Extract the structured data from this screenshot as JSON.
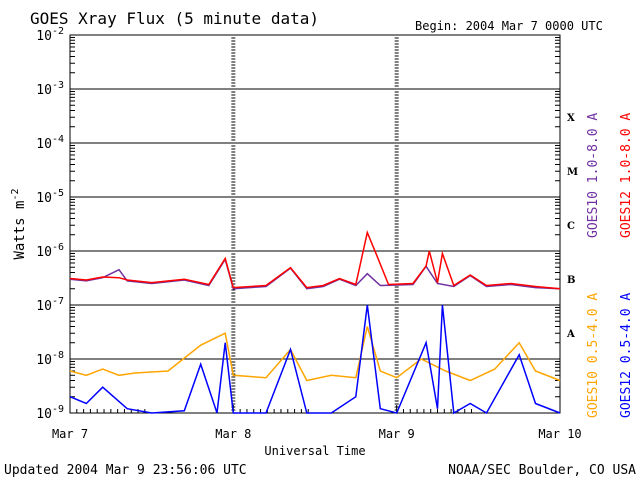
{
  "chart_data": {
    "type": "line",
    "title": "GOES Xray Flux (5 minute data)",
    "begin_label": "Begin:  2004 Mar 7 0000 UTC",
    "ylabel_main": "Watts m",
    "ylabel_exp": "-2",
    "xlabel": "Universal Time",
    "footer_left": "Updated 2004 Mar  9 23:56:06 UTC",
    "footer_right": "NOAA/SEC Boulder, CO USA",
    "y_scale": "log",
    "ylim": [
      1e-09,
      0.01
    ],
    "y_ticks": [
      {
        "base": "10",
        "exp": "-2",
        "value": 0.01
      },
      {
        "base": "10",
        "exp": "-3",
        "value": 0.001
      },
      {
        "base": "10",
        "exp": "-4",
        "value": 0.0001
      },
      {
        "base": "10",
        "exp": "-5",
        "value": 1e-05
      },
      {
        "base": "10",
        "exp": "-6",
        "value": 1e-06
      },
      {
        "base": "10",
        "exp": "-7",
        "value": 1e-07
      },
      {
        "base": "10",
        "exp": "-8",
        "value": 1e-08
      },
      {
        "base": "10",
        "exp": "-9",
        "value": 1e-09
      }
    ],
    "flare_classes": [
      {
        "label": "X",
        "value": 0.0003
      },
      {
        "label": "M",
        "value": 3e-05
      },
      {
        "label": "C",
        "value": 3e-06
      },
      {
        "label": "B",
        "value": 3e-07
      },
      {
        "label": "A",
        "value": 3e-08
      }
    ],
    "xlim": [
      0,
      3
    ],
    "x_ticks": [
      {
        "label": "Mar 7",
        "value": 0
      },
      {
        "label": "Mar 8",
        "value": 1
      },
      {
        "label": "Mar 9",
        "value": 2
      },
      {
        "label": "Mar 10",
        "value": 3
      }
    ],
    "grid": true,
    "series": [
      {
        "name": "GOES10 1.0-8.0 A",
        "color": "#7030a0",
        "band": "long",
        "points": [
          [
            0,
            3e-07
          ],
          [
            0.1,
            2.8e-07
          ],
          [
            0.2,
            3.2e-07
          ],
          [
            0.3,
            4.5e-07
          ],
          [
            0.35,
            2.8e-07
          ],
          [
            0.5,
            2.5e-07
          ],
          [
            0.7,
            2.9e-07
          ],
          [
            0.85,
            2.3e-07
          ],
          [
            0.95,
            7e-07
          ],
          [
            1.0,
            2e-07
          ],
          [
            1.2,
            2.2e-07
          ],
          [
            1.35,
            4.8e-07
          ],
          [
            1.45,
            2e-07
          ],
          [
            1.55,
            2.2e-07
          ],
          [
            1.65,
            3e-07
          ],
          [
            1.75,
            2.3e-07
          ],
          [
            1.82,
            3.8e-07
          ],
          [
            1.9,
            2.3e-07
          ],
          [
            2.1,
            2.4e-07
          ],
          [
            2.18,
            5.2e-07
          ],
          [
            2.25,
            2.5e-07
          ],
          [
            2.35,
            2.2e-07
          ],
          [
            2.45,
            3.5e-07
          ],
          [
            2.55,
            2.2e-07
          ],
          [
            2.7,
            2.4e-07
          ],
          [
            2.85,
            2.1e-07
          ],
          [
            3.0,
            2e-07
          ]
        ]
      },
      {
        "name": "GOES12 1.0-8.0 A",
        "color": "#ff0000",
        "band": "long",
        "points": [
          [
            0,
            3.1e-07
          ],
          [
            0.1,
            2.9e-07
          ],
          [
            0.2,
            3.3e-07
          ],
          [
            0.3,
            3.2e-07
          ],
          [
            0.35,
            2.9e-07
          ],
          [
            0.5,
            2.6e-07
          ],
          [
            0.7,
            3e-07
          ],
          [
            0.85,
            2.4e-07
          ],
          [
            0.95,
            7.3e-07
          ],
          [
            1.0,
            2.1e-07
          ],
          [
            1.2,
            2.3e-07
          ],
          [
            1.35,
            4.9e-07
          ],
          [
            1.45,
            2.1e-07
          ],
          [
            1.55,
            2.3e-07
          ],
          [
            1.65,
            3.1e-07
          ],
          [
            1.75,
            2.4e-07
          ],
          [
            1.82,
            2.2e-06
          ],
          [
            1.88,
            8e-07
          ],
          [
            1.95,
            2.4e-07
          ],
          [
            2.1,
            2.5e-07
          ],
          [
            2.18,
            5.3e-07
          ],
          [
            2.2,
            1e-06
          ],
          [
            2.25,
            2.6e-07
          ],
          [
            2.28,
            9e-07
          ],
          [
            2.35,
            2.3e-07
          ],
          [
            2.45,
            3.6e-07
          ],
          [
            2.55,
            2.3e-07
          ],
          [
            2.7,
            2.5e-07
          ],
          [
            2.85,
            2.2e-07
          ],
          [
            3.0,
            2e-07
          ]
        ]
      },
      {
        "name": "GOES10 0.5-4.0 A",
        "color": "#ffa500",
        "band": "short",
        "points": [
          [
            0,
            6e-09
          ],
          [
            0.1,
            5e-09
          ],
          [
            0.2,
            6.5e-09
          ],
          [
            0.3,
            5e-09
          ],
          [
            0.4,
            5.5e-09
          ],
          [
            0.6,
            6e-09
          ],
          [
            0.8,
            1.8e-08
          ],
          [
            0.95,
            3e-08
          ],
          [
            1.0,
            5e-09
          ],
          [
            1.2,
            4.5e-09
          ],
          [
            1.35,
            1.5e-08
          ],
          [
            1.45,
            4e-09
          ],
          [
            1.6,
            5e-09
          ],
          [
            1.75,
            4.5e-09
          ],
          [
            1.82,
            4e-08
          ],
          [
            1.9,
            6e-09
          ],
          [
            2.0,
            4.5e-09
          ],
          [
            2.15,
            1e-08
          ],
          [
            2.3,
            6e-09
          ],
          [
            2.45,
            4e-09
          ],
          [
            2.6,
            6.5e-09
          ],
          [
            2.75,
            2e-08
          ],
          [
            2.85,
            6e-09
          ],
          [
            3.0,
            4e-09
          ]
        ]
      },
      {
        "name": "GOES12 0.5-4.0 A",
        "color": "#0000ff",
        "band": "short",
        "points": [
          [
            0,
            2e-09
          ],
          [
            0.1,
            1.5e-09
          ],
          [
            0.2,
            3e-09
          ],
          [
            0.35,
            1.2e-09
          ],
          [
            0.5,
            1e-09
          ],
          [
            0.7,
            1.1e-09
          ],
          [
            0.8,
            8e-09
          ],
          [
            0.9,
            1e-09
          ],
          [
            0.95,
            2e-08
          ],
          [
            1.0,
            1e-09
          ],
          [
            1.2,
            1e-09
          ],
          [
            1.35,
            1.5e-08
          ],
          [
            1.45,
            1e-09
          ],
          [
            1.6,
            1e-09
          ],
          [
            1.75,
            2e-09
          ],
          [
            1.82,
            1e-07
          ],
          [
            1.9,
            1.2e-09
          ],
          [
            2.0,
            1e-09
          ],
          [
            2.18,
            2e-08
          ],
          [
            2.25,
            1.2e-09
          ],
          [
            2.28,
            1e-07
          ],
          [
            2.35,
            1e-09
          ],
          [
            2.45,
            1.5e-09
          ],
          [
            2.55,
            1e-09
          ],
          [
            2.75,
            1.2e-08
          ],
          [
            2.85,
            1.5e-09
          ],
          [
            3.0,
            1e-09
          ]
        ]
      }
    ]
  }
}
